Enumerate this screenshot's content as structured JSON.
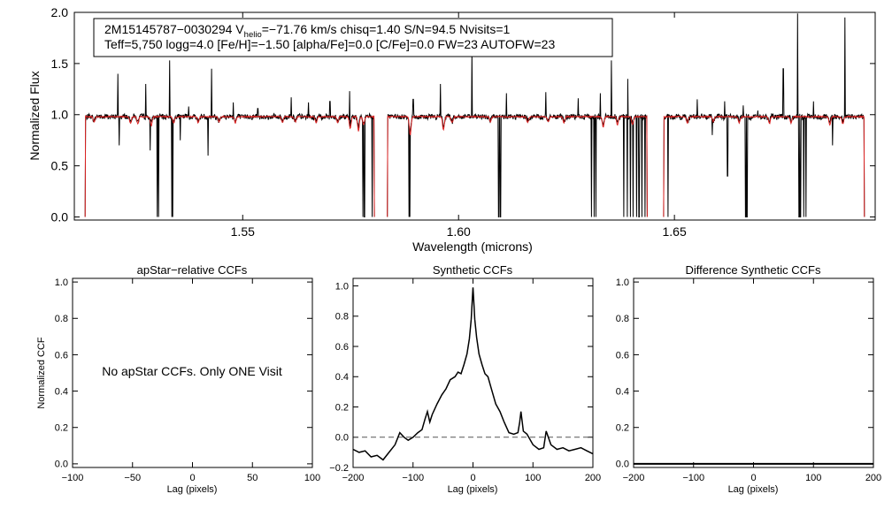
{
  "colors": {
    "model": "#dd2222",
    "observed": "#000000",
    "zero_line": "#555555"
  },
  "chart_data": [
    {
      "type": "line",
      "id": "spectrum",
      "xlabel": "Wavelength (microns)",
      "ylabel": "Normalized Flux",
      "xlim": [
        1.511,
        1.6965
      ],
      "ylim": [
        -0.03,
        2.0
      ],
      "xticks": [
        1.55,
        1.6,
        1.65
      ],
      "xtick_labels": [
        "1.55",
        "1.60",
        "1.65"
      ],
      "yticks": [
        0.0,
        0.5,
        1.0,
        1.5,
        2.0
      ],
      "ytick_labels": [
        "0.0",
        "0.5",
        "1.0",
        "1.5",
        "2.0"
      ],
      "info_line1": {
        "prefix": "2M15145787−0030294  V",
        "sub": "helio",
        "suffix": "=−71.76 km/s  chisq=1.40  S/N=94.5  Nvisits=1"
      },
      "info_line2": "Teff=5,750 logg=4.0 [Fe/H]=−1.50 [alpha/Fe]=0.0 [C/Fe]=0.0 FW=23 AUTOFW=23",
      "continuum_level": 0.98,
      "chips": [
        [
          1.5135,
          1.5805
        ],
        [
          1.5835,
          1.6437
        ],
        [
          1.6475,
          1.694
        ]
      ],
      "emission_spikes": [
        [
          1.5211,
          1.4
        ],
        [
          1.5275,
          1.3
        ],
        [
          1.5331,
          1.53
        ],
        [
          1.5375,
          1.08
        ],
        [
          1.5428,
          1.45
        ],
        [
          1.5478,
          1.12
        ],
        [
          1.5535,
          1.06
        ],
        [
          1.5612,
          1.17
        ],
        [
          1.5652,
          1.12
        ],
        [
          1.5702,
          1.13
        ],
        [
          1.5748,
          1.23
        ],
        [
          1.5895,
          1.15
        ],
        [
          1.5958,
          1.3
        ],
        [
          1.6031,
          1.62
        ],
        [
          1.6111,
          1.21
        ],
        [
          1.6202,
          1.22
        ],
        [
          1.6277,
          1.16
        ],
        [
          1.6328,
          1.21
        ],
        [
          1.6354,
          1.53
        ],
        [
          1.6392,
          1.35
        ],
        [
          1.6553,
          1.15
        ],
        [
          1.6616,
          1.13
        ],
        [
          1.6659,
          1.09
        ],
        [
          1.6693,
          1.04
        ],
        [
          1.6752,
          1.45
        ],
        [
          1.6785,
          1.99
        ],
        [
          1.6822,
          1.13
        ],
        [
          1.6895,
          1.95
        ],
        [
          1.694,
          1.8
        ]
      ],
      "absorption_dips": [
        [
          1.5214,
          0.7
        ],
        [
          1.5286,
          0.65
        ],
        [
          1.5302,
          0.0
        ],
        [
          1.5305,
          0.0
        ],
        [
          1.5336,
          0.0
        ],
        [
          1.5338,
          0.0
        ],
        [
          1.5355,
          0.75
        ],
        [
          1.542,
          0.6
        ],
        [
          1.5778,
          0.0
        ],
        [
          1.5782,
          0.0
        ],
        [
          1.58,
          0.0
        ],
        [
          1.5885,
          0.0
        ],
        [
          1.5887,
          0.0
        ],
        [
          1.6093,
          0.0
        ],
        [
          1.6097,
          0.0
        ],
        [
          1.6308,
          0.0
        ],
        [
          1.6314,
          0.0
        ],
        [
          1.6318,
          0.0
        ],
        [
          1.6383,
          0.0
        ],
        [
          1.6391,
          0.0
        ],
        [
          1.6398,
          0.0
        ],
        [
          1.6404,
          0.0
        ],
        [
          1.6412,
          0.0
        ],
        [
          1.6418,
          0.0
        ],
        [
          1.6425,
          0.0
        ],
        [
          1.6432,
          0.0
        ],
        [
          1.6485,
          0.0
        ],
        [
          1.6588,
          0.8
        ],
        [
          1.6623,
          0.4
        ],
        [
          1.6665,
          0.0
        ],
        [
          1.6668,
          0.0
        ],
        [
          1.6789,
          0.0
        ],
        [
          1.6792,
          0.0
        ],
        [
          1.68,
          0.0
        ],
        [
          1.6805,
          0.0
        ],
        [
          1.6866,
          0.7
        ]
      ],
      "model_dips": [
        [
          1.5156,
          0.93
        ],
        [
          1.524,
          0.92
        ],
        [
          1.5257,
          0.91
        ],
        [
          1.5288,
          0.89
        ],
        [
          1.534,
          0.92
        ],
        [
          1.5397,
          0.92
        ],
        [
          1.5445,
          0.93
        ],
        [
          1.5483,
          0.92
        ],
        [
          1.5592,
          0.92
        ],
        [
          1.5622,
          0.93
        ],
        [
          1.567,
          0.92
        ],
        [
          1.572,
          0.92
        ],
        [
          1.5749,
          0.86
        ],
        [
          1.5768,
          0.84
        ],
        [
          1.578,
          0.9
        ],
        [
          1.5888,
          0.8
        ],
        [
          1.5965,
          0.85
        ],
        [
          1.5985,
          0.92
        ],
        [
          1.6074,
          0.93
        ],
        [
          1.616,
          0.92
        ],
        [
          1.6208,
          0.93
        ],
        [
          1.6244,
          0.92
        ],
        [
          1.6335,
          0.88
        ],
        [
          1.6368,
          0.9
        ],
        [
          1.6403,
          0.9
        ],
        [
          1.644,
          0.9
        ],
        [
          1.653,
          0.92
        ],
        [
          1.659,
          0.93
        ],
        [
          1.665,
          0.92
        ],
        [
          1.672,
          0.91
        ],
        [
          1.677,
          0.92
        ],
        [
          1.686,
          0.9
        ],
        [
          1.689,
          0.91
        ]
      ]
    },
    {
      "type": "line",
      "id": "apstar_ccf",
      "title": "apStar−relative CCFs",
      "xlabel": "Lag (pixels)",
      "ylabel": "Normalized CCF",
      "xlim": [
        -100,
        100
      ],
      "ylim": [
        -0.02,
        1.02
      ],
      "xticks": [
        -100,
        -50,
        0,
        50,
        100
      ],
      "xtick_labels": [
        "−100",
        "−50",
        "0",
        "50",
        "100"
      ],
      "yticks": [
        0.0,
        0.2,
        0.4,
        0.6,
        0.8,
        1.0
      ],
      "ytick_labels": [
        "0.0",
        "0.2",
        "0.4",
        "0.6",
        "0.8",
        "1.0"
      ],
      "annotation": "No apStar CCFs.  Only ONE Visit"
    },
    {
      "type": "line",
      "id": "synthetic_ccf",
      "title": "Synthetic CCFs",
      "xlabel": "Lag (pixels)",
      "xlim": [
        -200,
        200
      ],
      "ylim": [
        -0.2,
        1.05
      ],
      "xticks": [
        -200,
        -100,
        0,
        100,
        200
      ],
      "xtick_labels": [
        "−200",
        "−100",
        "0",
        "100",
        "200"
      ],
      "yticks": [
        -0.2,
        0.0,
        0.2,
        0.4,
        0.6,
        0.8,
        1.0
      ],
      "ytick_labels": [
        "−0.2",
        "0.0",
        "0.2",
        "0.4",
        "0.6",
        "0.8",
        "1.0"
      ],
      "reference_line": 0.0,
      "x": [
        -200,
        -190,
        -180,
        -170,
        -160,
        -150,
        -140,
        -130,
        -122,
        -115,
        -108,
        -100,
        -92,
        -85,
        -80,
        -76,
        -72,
        -68,
        -60,
        -52,
        -45,
        -38,
        -30,
        -25,
        -20,
        -15,
        -10,
        -6,
        -3,
        -1,
        0,
        1,
        3,
        6,
        10,
        15,
        20,
        25,
        30,
        38,
        45,
        52,
        60,
        68,
        75,
        78,
        80,
        84,
        90,
        100,
        110,
        118,
        122,
        130,
        140,
        150,
        160,
        170,
        180,
        190,
        200
      ],
      "y": [
        -0.08,
        -0.1,
        -0.09,
        -0.13,
        -0.12,
        -0.15,
        -0.1,
        -0.05,
        0.03,
        0.0,
        -0.02,
        0.0,
        0.03,
        0.05,
        0.12,
        0.17,
        0.1,
        0.15,
        0.22,
        0.28,
        0.32,
        0.38,
        0.4,
        0.43,
        0.42,
        0.48,
        0.55,
        0.65,
        0.78,
        0.92,
        0.99,
        0.92,
        0.78,
        0.66,
        0.55,
        0.48,
        0.42,
        0.4,
        0.33,
        0.22,
        0.17,
        0.1,
        0.03,
        0.02,
        0.03,
        0.1,
        0.17,
        0.04,
        0.02,
        -0.05,
        -0.08,
        -0.07,
        0.04,
        -0.05,
        -0.08,
        -0.07,
        -0.09,
        -0.08,
        -0.07,
        -0.09,
        -0.11
      ]
    },
    {
      "type": "line",
      "id": "difference_ccf",
      "title": "Difference Synthetic CCFs",
      "xlabel": "Lag (pixels)",
      "xlim": [
        -200,
        200
      ],
      "ylim": [
        -0.02,
        1.02
      ],
      "xticks": [
        -200,
        -100,
        0,
        100,
        200
      ],
      "xtick_labels": [
        "−200",
        "−100",
        "0",
        "100",
        "200"
      ],
      "yticks": [
        0.0,
        0.2,
        0.4,
        0.6,
        0.8,
        1.0
      ],
      "ytick_labels": [
        "0.0",
        "0.2",
        "0.4",
        "0.6",
        "0.8",
        "1.0"
      ],
      "x": [
        -200,
        200
      ],
      "y": [
        0.0,
        0.0
      ]
    }
  ]
}
